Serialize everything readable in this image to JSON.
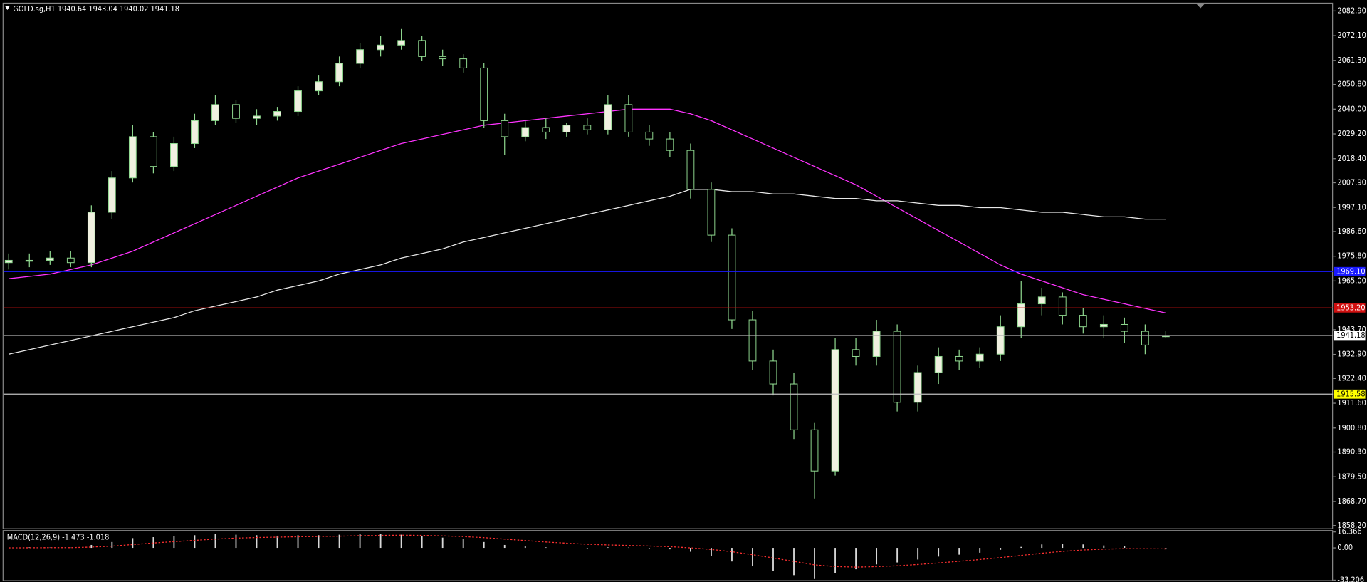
{
  "chart_data": [
    {
      "type": "candlestick",
      "title": "GOLD.sg,H1  1940.64 1943.04 1940.02 1941.18",
      "open": [
        1973,
        1974,
        1974,
        1975,
        1973,
        1995,
        2010,
        2028,
        2015,
        2025,
        2035,
        2042,
        2036,
        2037,
        2039,
        2048,
        2052,
        2060,
        2066,
        2068,
        2070,
        2063,
        2062,
        2058,
        2035,
        2028,
        2032,
        2030,
        2033,
        2031,
        2042,
        2030,
        2027,
        2022,
        2005,
        1985,
        1948,
        1930,
        1920,
        1900,
        1882,
        1935,
        1932,
        1943,
        1912,
        1925,
        1932,
        1930,
        1933,
        1945,
        1955,
        1958,
        1950,
        1945,
        1946,
        1943,
        1940.64
      ],
      "high": [
        1977,
        1977,
        1978,
        1978,
        1998,
        2013,
        2033,
        2030,
        2028,
        2038,
        2046,
        2044,
        2040,
        2041,
        2050,
        2055,
        2063,
        2069,
        2072,
        2075,
        2072,
        2066,
        2064,
        2060,
        2038,
        2035,
        2036,
        2034,
        2036,
        2046,
        2046,
        2033,
        2030,
        2025,
        2008,
        1988,
        1952,
        1935,
        1925,
        1903,
        1940,
        1940,
        1948,
        1946,
        1928,
        1936,
        1935,
        1936,
        1950,
        1965,
        1962,
        1960,
        1953,
        1950,
        1949,
        1946,
        1943.04
      ],
      "low": [
        1970,
        1971,
        1972,
        1971,
        1971,
        1992,
        2008,
        2012,
        2013,
        2023,
        2033,
        2034,
        2033,
        2035,
        2037,
        2046,
        2050,
        2058,
        2063,
        2066,
        2061,
        2059,
        2056,
        2032,
        2020,
        2026,
        2027,
        2028,
        2029,
        2029,
        2028,
        2024,
        2019,
        2001,
        1982,
        1944,
        1926,
        1915,
        1896,
        1870,
        1880,
        1928,
        1928,
        1908,
        1908,
        1920,
        1926,
        1927,
        1930,
        1940,
        1950,
        1946,
        1942,
        1940,
        1938,
        1933,
        1940.02
      ],
      "close": [
        1974,
        1974,
        1975,
        1973,
        1995,
        2010,
        2028,
        2015,
        2025,
        2035,
        2042,
        2036,
        2037,
        2039,
        2048,
        2052,
        2060,
        2066,
        2068,
        2070,
        2063,
        2062,
        2058,
        2035,
        2028,
        2032,
        2030,
        2033,
        2031,
        2042,
        2030,
        2027,
        2022,
        2005,
        1985,
        1948,
        1930,
        1920,
        1900,
        1882,
        1935,
        1932,
        1943,
        1912,
        1925,
        1932,
        1930,
        1933,
        1945,
        1955,
        1958,
        1950,
        1945,
        1946,
        1943,
        1937,
        1941.18
      ],
      "up_color": "#f0f0e0",
      "down_color": "#000000",
      "wick_color": "#8fd88f",
      "overlays": [
        {
          "color": "#ff33ff",
          "values": [
            1966,
            1967,
            1968,
            1970,
            1972,
            1975,
            1978,
            1982,
            1986,
            1990,
            1994,
            1998,
            2002,
            2006,
            2010,
            2013,
            2016,
            2019,
            2022,
            2025,
            2027,
            2029,
            2031,
            2033,
            2034,
            2035,
            2036,
            2037,
            2038,
            2039,
            2040,
            2040,
            2040,
            2038,
            2035,
            2031,
            2027,
            2023,
            2019,
            2015,
            2011,
            2007,
            2002,
            1997,
            1992,
            1987,
            1982,
            1977,
            1972,
            1968,
            1965,
            1962,
            1959,
            1957,
            1955,
            1953,
            1951
          ]
        },
        {
          "color": "#e8e8e8",
          "values": [
            1933,
            1935,
            1937,
            1939,
            1941,
            1943,
            1945,
            1947,
            1949,
            1952,
            1954,
            1956,
            1958,
            1961,
            1963,
            1965,
            1968,
            1970,
            1972,
            1975,
            1977,
            1979,
            1982,
            1984,
            1986,
            1988,
            1990,
            1992,
            1994,
            1996,
            1998,
            2000,
            2002,
            2005,
            2005,
            2004,
            2004,
            2003,
            2003,
            2002,
            2001,
            2001,
            2000,
            2000,
            1999,
            1998,
            1998,
            1997,
            1997,
            1996,
            1995,
            1995,
            1994,
            1993,
            1993,
            1992,
            1992
          ]
        }
      ],
      "hlines": [
        {
          "value": 1969.1,
          "label": "1969.10",
          "color": "#1a1aff",
          "label_bg": "#1a1aff"
        },
        {
          "value": 1953.2,
          "label": "1953.20",
          "color": "#d01010",
          "label_bg": "#d01010"
        },
        {
          "value": 1941.18,
          "label": "1941.18",
          "color": "#b0b0b0",
          "label_bg": "#ffffff"
        },
        {
          "value": 1915.58,
          "label": "1915.58",
          "color": "#c0c0c0",
          "label_bg": "#ffff00"
        }
      ],
      "ylim": [
        1857.0,
        2086.1
      ],
      "yticks": [
        {
          "value": 2082.9,
          "label": "2082.90"
        },
        {
          "value": 2072.1,
          "label": "2072.10"
        },
        {
          "value": 2061.3,
          "label": "2061.30"
        },
        {
          "value": 2050.8,
          "label": "2050.80"
        },
        {
          "value": 2040.0,
          "label": "2040.00"
        },
        {
          "value": 2029.2,
          "label": "2029.20"
        },
        {
          "value": 2018.4,
          "label": "2018.40"
        },
        {
          "value": 2007.9,
          "label": "2007.90"
        },
        {
          "value": 1997.1,
          "label": "1997.10"
        },
        {
          "value": 1986.6,
          "label": "1986.60"
        },
        {
          "value": 1975.8,
          "label": "1975.80"
        },
        {
          "value": 1965.0,
          "label": "1965.00"
        },
        {
          "value": 1943.7,
          "label": "1943.70"
        },
        {
          "value": 1932.9,
          "label": "1932.90"
        },
        {
          "value": 1922.4,
          "label": "1922.40"
        },
        {
          "value": 1911.6,
          "label": "1911.60"
        },
        {
          "value": 1900.8,
          "label": "1900.80"
        },
        {
          "value": 1890.3,
          "label": "1890.30"
        },
        {
          "value": 1879.5,
          "label": "1879.50"
        },
        {
          "value": 1868.7,
          "label": "1868.70"
        },
        {
          "value": 1858.2,
          "label": "1858.20"
        }
      ]
    },
    {
      "type": "macd",
      "title": "MACD(12,26,9) -1.473 -1.018",
      "values": [
        0,
        0.5,
        0.3,
        0.2,
        3,
        6,
        10,
        11,
        12,
        13,
        14,
        13.5,
        13,
        12.5,
        13,
        13,
        13.5,
        14,
        14,
        13.5,
        12,
        10.5,
        9,
        6,
        3,
        1.5,
        0.5,
        0,
        -0.5,
        0.5,
        0.3,
        -0.5,
        -1.5,
        -4,
        -8,
        -14,
        -19,
        -24,
        -28,
        -32,
        -26,
        -22,
        -17,
        -15,
        -12,
        -9,
        -7,
        -5,
        -2,
        1,
        3.5,
        4,
        3.5,
        2.5,
        1.5,
        0,
        -1.473
      ],
      "signal": [
        0,
        0.1,
        0.2,
        0.2,
        0.8,
        1.8,
        3.4,
        5,
        6.4,
        7.7,
        9,
        10,
        10.6,
        11,
        11.4,
        11.7,
        12,
        12.5,
        12.8,
        13,
        12.8,
        12.3,
        11.6,
        10.5,
        9,
        7.5,
        6,
        4.8,
        3.7,
        3,
        2.5,
        1.9,
        1.2,
        0,
        -1.6,
        -4,
        -7,
        -10.4,
        -13.9,
        -17.5,
        -19.2,
        -19.8,
        -19.3,
        -18.4,
        -17.1,
        -15.5,
        -13.8,
        -12,
        -10,
        -7.8,
        -5.5,
        -3.6,
        -2.2,
        -1.3,
        -0.8,
        -0.9,
        -1.018
      ],
      "color": "#d8d8d8",
      "signal_color": "#ff3030",
      "ylim": [
        -33.206,
        16.366
      ],
      "yticks": [
        16.366,
        {
          "value": 0,
          "label": "0.00"
        },
        -33.206
      ]
    }
  ]
}
